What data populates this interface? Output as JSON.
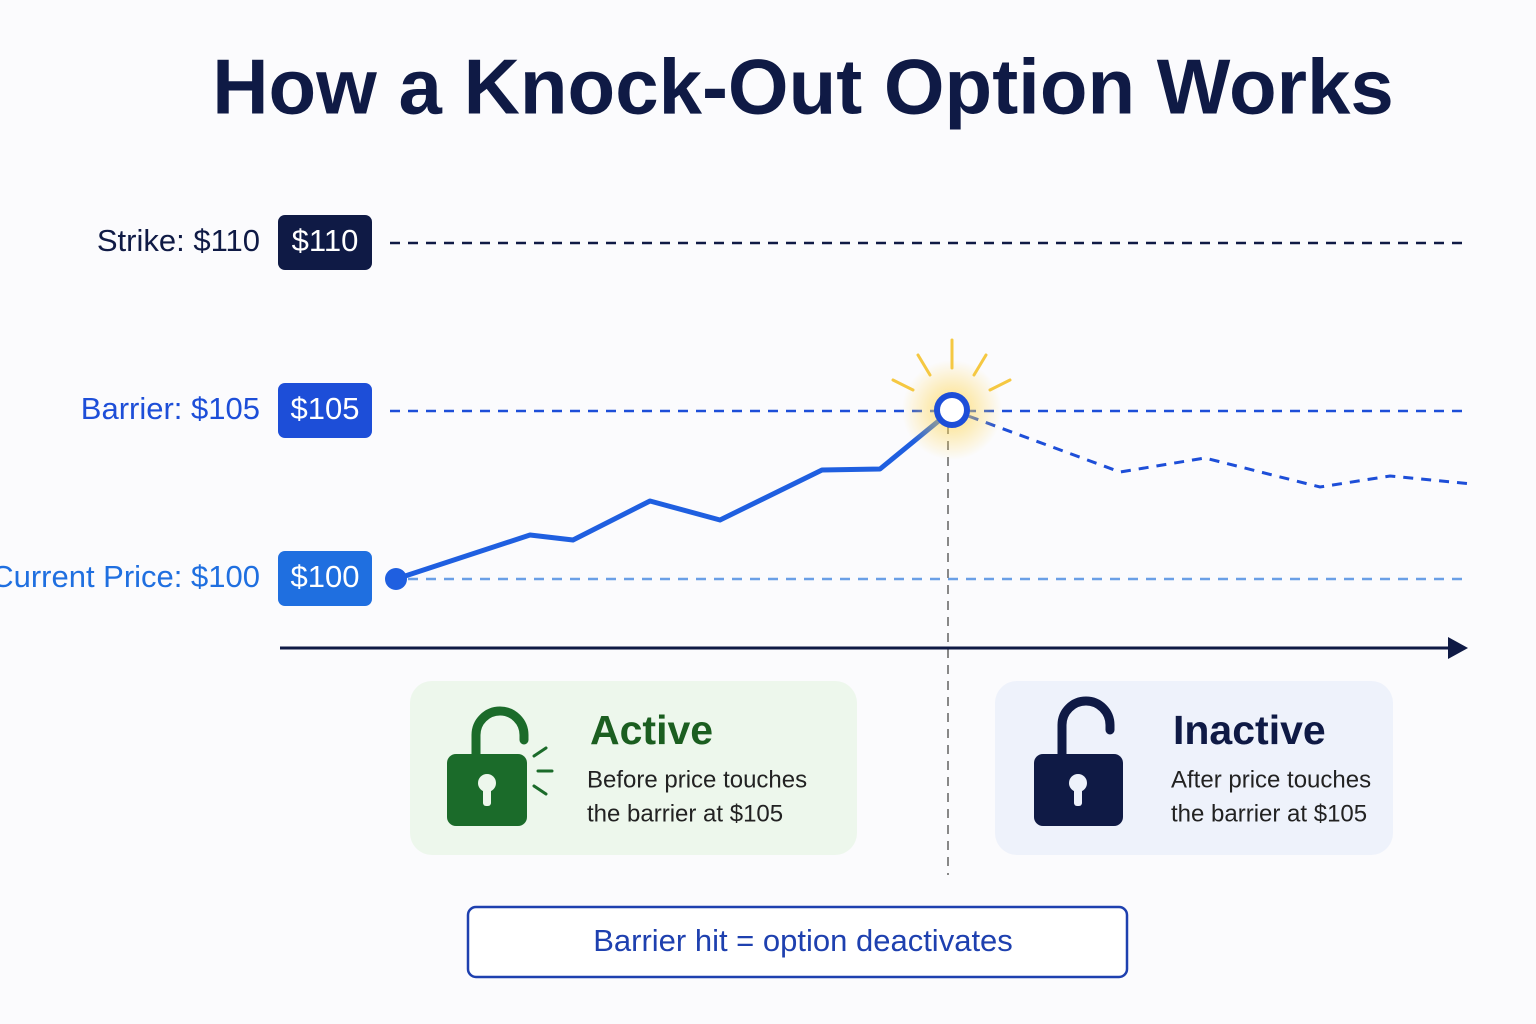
{
  "title": "How a Knock-Out Option Works",
  "levels": [
    {
      "label": "Strike: $110",
      "badge": "$110"
    },
    {
      "label": "Barrier: $105",
      "badge": "$105"
    },
    {
      "label": "Current Price: $100",
      "badge": "$100"
    }
  ],
  "states": [
    {
      "title": "Active",
      "lines": [
        "Before price touches",
        "the barrier at $105"
      ]
    },
    {
      "title": "Inactive",
      "lines": [
        "After price touches",
        "the barrier at $105"
      ]
    }
  ],
  "note": "Barrier hit = option deactivates"
}
